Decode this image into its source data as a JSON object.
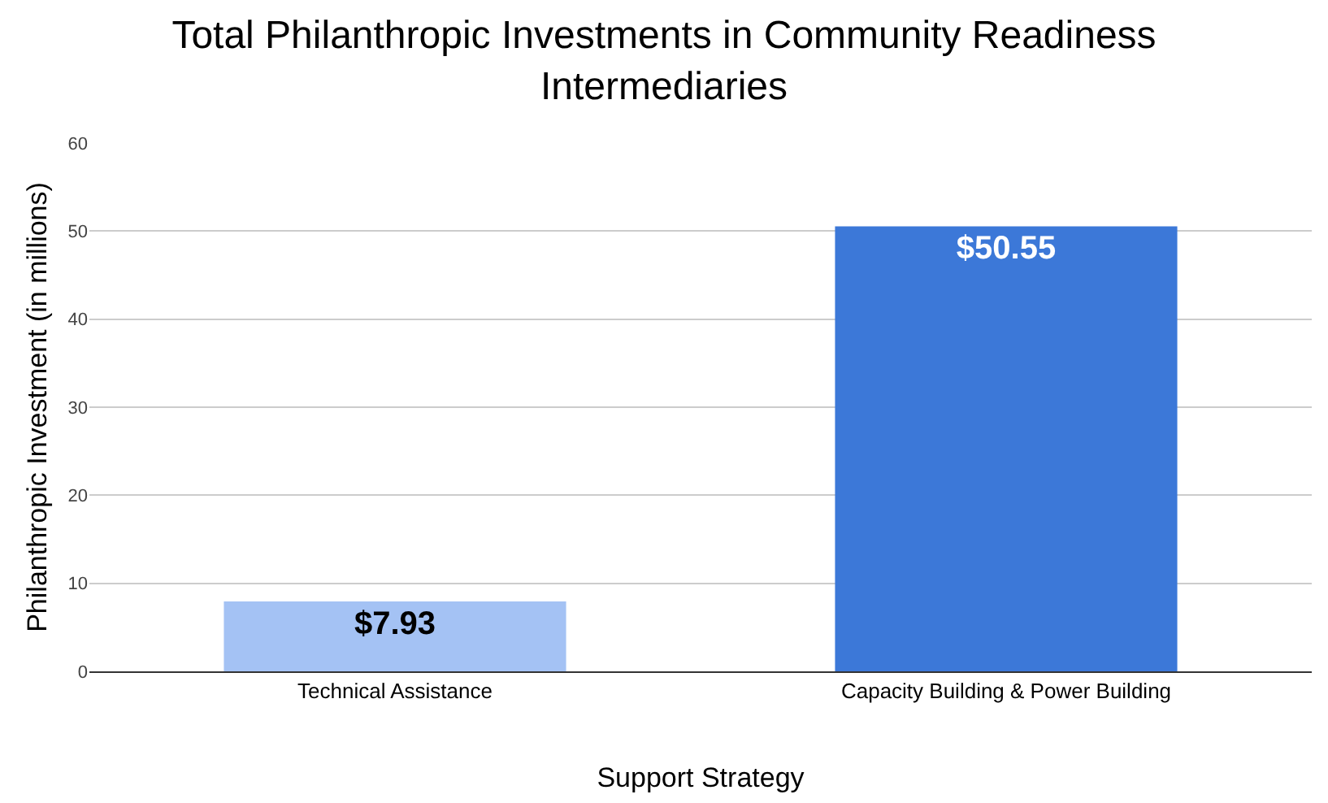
{
  "chart_data": {
    "type": "bar",
    "title": "Total Philanthropic Investments in Community Readiness\nIntermediaries",
    "xlabel": "Support Strategy",
    "ylabel": "Philanthropic Investment (in millions)",
    "categories": [
      "Technical Assistance",
      "Capacity Building & Power Building"
    ],
    "values": [
      7.93,
      50.55
    ],
    "colors": [
      "#a4c2f4",
      "#3c78d8"
    ],
    "value_labels": [
      "$7.93",
      "$50.55"
    ],
    "ylim": [
      0,
      60
    ],
    "yticks": [
      0,
      10,
      20,
      30,
      40,
      50,
      60
    ],
    "grid": "y"
  }
}
